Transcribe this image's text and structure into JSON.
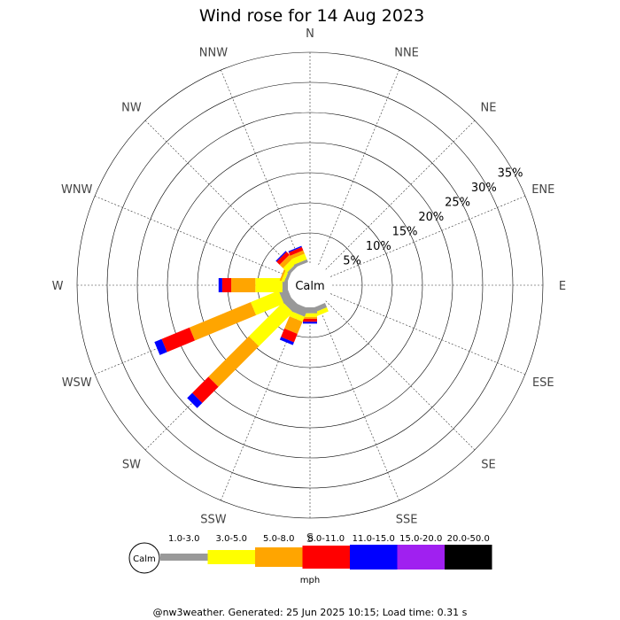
{
  "chart_data": {
    "type": "windrose",
    "title": "Wind rose for 14 Aug 2023",
    "directions": [
      "N",
      "NNE",
      "NE",
      "ENE",
      "E",
      "ESE",
      "SE",
      "SSE",
      "S",
      "SSW",
      "SW",
      "WSW",
      "W",
      "WNW",
      "NW",
      "NNW"
    ],
    "direction_degrees": [
      0,
      22.5,
      45,
      67.5,
      90,
      112.5,
      135,
      157.5,
      180,
      202.5,
      225,
      247.5,
      270,
      292.5,
      315,
      337.5
    ],
    "radial_ticks": [
      5,
      10,
      15,
      20,
      25,
      30,
      35
    ],
    "radial_tick_labels": [
      "5%",
      "10%",
      "15%",
      "20%",
      "25%",
      "30%",
      "35%"
    ],
    "radial_max": 35,
    "calm_label": "Calm",
    "speed_bins": [
      {
        "label": "1.0-3.0",
        "color": "#999999"
      },
      {
        "label": "3.0-5.0",
        "color": "#ffff00"
      },
      {
        "label": "5.0-8.0",
        "color": "#ffa500"
      },
      {
        "label": "8.0-11.0",
        "color": "#ff0000"
      },
      {
        "label": "11.0-15.0",
        "color": "#0000ff"
      },
      {
        "label": "15.0-20.0",
        "color": "#a020f0"
      },
      {
        "label": "20.0-50.0",
        "color": "#000000"
      }
    ],
    "speed_unit": "mph",
    "series": [
      {
        "direction": "SSE",
        "segments": [
          0.8,
          0.7,
          0,
          0,
          0,
          0,
          0
        ]
      },
      {
        "direction": "S",
        "segments": [
          1.0,
          0.6,
          0.3,
          0.5,
          0.3,
          0,
          0
        ]
      },
      {
        "direction": "SSW",
        "segments": [
          1.5,
          0.9,
          2.2,
          1.5,
          0.5,
          0,
          0
        ]
      },
      {
        "direction": "SW",
        "segments": [
          1.5,
          8.0,
          9.5,
          3.8,
          1.2,
          0,
          0
        ]
      },
      {
        "direction": "WSW",
        "segments": [
          1.5,
          5.0,
          11.0,
          5.0,
          1.3,
          0,
          0
        ]
      },
      {
        "direction": "W",
        "segments": [
          0.9,
          4.5,
          4.0,
          1.5,
          0.6,
          0,
          0
        ]
      },
      {
        "direction": "WNW",
        "segments": [
          0.5,
          0.5,
          0.3,
          0,
          0,
          0,
          0
        ]
      },
      {
        "direction": "NW",
        "segments": [
          0.5,
          1.0,
          0.8,
          0.7,
          0.2,
          0,
          0
        ]
      },
      {
        "direction": "NNW",
        "segments": [
          0.5,
          1.0,
          0.6,
          0.6,
          0.2,
          0,
          0
        ]
      }
    ]
  },
  "footer": "@nw3weather. Generated: 25 Jun 2025 10:15; Load time: 0.31 s"
}
